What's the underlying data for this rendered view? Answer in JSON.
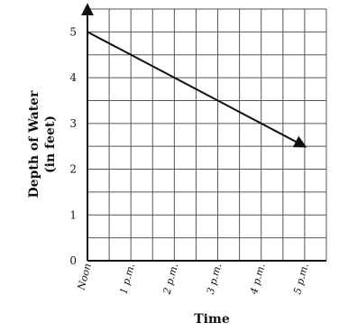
{
  "chart_data": {
    "type": "line",
    "title": "",
    "xlabel": "Time",
    "ylabel_lines": [
      "Depth of Water",
      "(in feet)"
    ],
    "x_tick_labels": [
      "Noon",
      "1 p.m.",
      "2 p.m.",
      "3 p.m.",
      "4 p.m.",
      "5 p.m."
    ],
    "y_tick_labels": [
      "0",
      "1",
      "2",
      "3",
      "4",
      "5"
    ],
    "xlim": [
      0,
      5.5
    ],
    "ylim": [
      0,
      5.5
    ],
    "grid": true,
    "grid_step": 0.5,
    "series": [
      {
        "x": [
          0,
          5
        ],
        "y": [
          5,
          2.5
        ],
        "arrow_end": true
      }
    ]
  }
}
